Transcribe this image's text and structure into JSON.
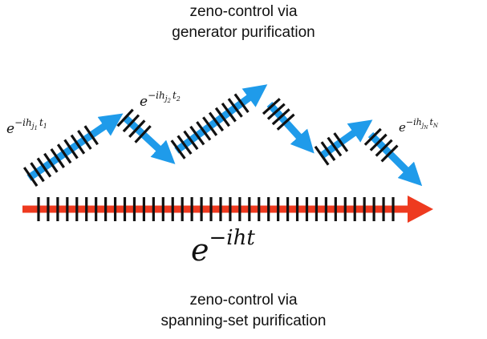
{
  "captions": {
    "top": [
      "zeno-control via",
      "generator purification"
    ],
    "bottom": [
      "zeno-control via",
      "spanning-set purification"
    ]
  },
  "labels": {
    "first_step": {
      "base": "e",
      "exp_lead": "−ih",
      "exp_sub": "j",
      "exp_subsub": "1",
      "exp_t": "t",
      "exp_tsub": "1"
    },
    "second_step": {
      "base": "e",
      "exp_lead": "−ih",
      "exp_sub": "j",
      "exp_subsub": "2",
      "exp_t": "t",
      "exp_tsub": "2"
    },
    "last_step": {
      "base": "e",
      "exp_lead": "−ih",
      "exp_sub": "j",
      "exp_subsub": "N",
      "exp_t": "t",
      "exp_tsub": "N"
    },
    "full": {
      "base": "e",
      "exp": "−iht"
    }
  },
  "colors": {
    "zigzag_arrows": "#1f9bea",
    "main_arrow": "#ee3a1f",
    "ticks": "#111111"
  }
}
